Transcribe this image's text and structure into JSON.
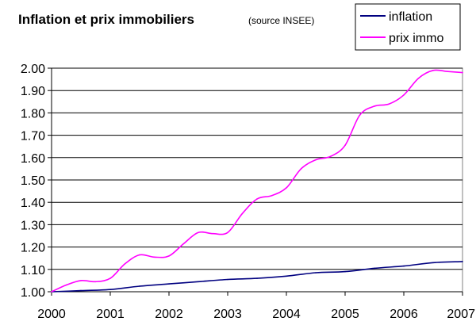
{
  "chart_data": {
    "type": "line",
    "title": "Inflation et prix immobiliers",
    "subtitle": "(source INSEE)",
    "xlabel": "",
    "ylabel": "",
    "xlim": [
      2000,
      2007
    ],
    "ylim": [
      1.0,
      2.0
    ],
    "x_ticks": [
      "2000",
      "2001",
      "2002",
      "2003",
      "2004",
      "2005",
      "2006",
      "2007"
    ],
    "y_ticks": [
      "1.00",
      "1.10",
      "1.20",
      "1.30",
      "1.40",
      "1.50",
      "1.60",
      "1.70",
      "1.80",
      "1.90",
      "2.00"
    ],
    "grid": "horizontal",
    "legend_position": "top-right",
    "series": [
      {
        "name": "inflation",
        "color": "#000080",
        "x": [
          2000,
          2000.5,
          2001,
          2001.5,
          2002,
          2002.5,
          2003,
          2003.5,
          2004,
          2004.5,
          2005,
          2005.5,
          2006,
          2006.5,
          2007
        ],
        "values": [
          1.0,
          1.005,
          1.01,
          1.025,
          1.035,
          1.045,
          1.055,
          1.06,
          1.07,
          1.085,
          1.09,
          1.105,
          1.115,
          1.13,
          1.135
        ]
      },
      {
        "name": "prix immo",
        "color": "#ff00ff",
        "x": [
          2000,
          2000.25,
          2000.5,
          2000.75,
          2001,
          2001.25,
          2001.5,
          2001.75,
          2002,
          2002.25,
          2002.5,
          2002.75,
          2003,
          2003.25,
          2003.5,
          2003.75,
          2004,
          2004.25,
          2004.5,
          2004.75,
          2005,
          2005.25,
          2005.5,
          2005.75,
          2006,
          2006.25,
          2006.5,
          2006.75,
          2007
        ],
        "values": [
          1.0,
          1.03,
          1.05,
          1.045,
          1.06,
          1.125,
          1.165,
          1.155,
          1.16,
          1.215,
          1.265,
          1.26,
          1.265,
          1.35,
          1.415,
          1.43,
          1.465,
          1.55,
          1.59,
          1.605,
          1.655,
          1.79,
          1.83,
          1.84,
          1.88,
          1.955,
          1.99,
          1.985,
          1.98
        ]
      }
    ]
  }
}
